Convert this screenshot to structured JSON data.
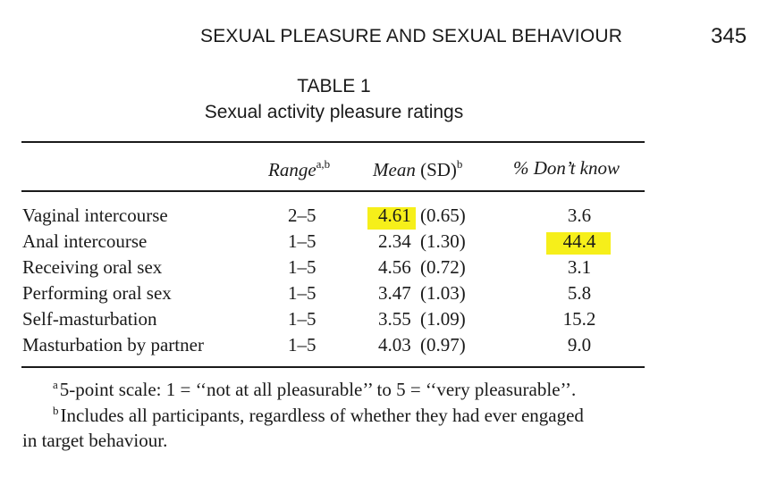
{
  "header": {
    "running_head": "SEXUAL PLEASURE AND SEXUAL BEHAVIOUR",
    "page_number": "345"
  },
  "table": {
    "label": "TABLE 1",
    "caption": "Sexual activity pleasure ratings",
    "columns": {
      "range": {
        "text": "Range",
        "sup": "a,b"
      },
      "mean": {
        "text": "Mean",
        "sd": " (SD)",
        "sup": "b"
      },
      "dont_know": "% Don’t know"
    },
    "rows": [
      {
        "activity": "Vaginal intercourse",
        "range": "2–5",
        "mean": "4.61",
        "sd": "(0.65)",
        "dont_know": "3.6"
      },
      {
        "activity": "Anal intercourse",
        "range": "1–5",
        "mean": "2.34",
        "sd": "(1.30)",
        "dont_know": "44.4"
      },
      {
        "activity": "Receiving oral sex",
        "range": "1–5",
        "mean": "4.56",
        "sd": "(0.72)",
        "dont_know": "3.1"
      },
      {
        "activity": "Performing oral sex",
        "range": "1–5",
        "mean": "3.47",
        "sd": "(1.03)",
        "dont_know": "5.8"
      },
      {
        "activity": "Self-masturbation",
        "range": "1–5",
        "mean": "3.55",
        "sd": "(1.09)",
        "dont_know": "15.2"
      },
      {
        "activity": "Masturbation by partner",
        "range": "1–5",
        "mean": "4.03",
        "sd": "(0.97)",
        "dont_know": "9.0"
      }
    ]
  },
  "notes": {
    "a_marker": "a",
    "a_text": "5-point scale: 1 = ‘‘not at all pleasurable’’ to 5 = ‘‘very pleasurable’’.",
    "b_marker": "b",
    "b_text": "Includes all participants, regardless of whether they had ever engaged",
    "b_text_cont": "in target behaviour."
  },
  "highlight_color": "#f6ef1a"
}
